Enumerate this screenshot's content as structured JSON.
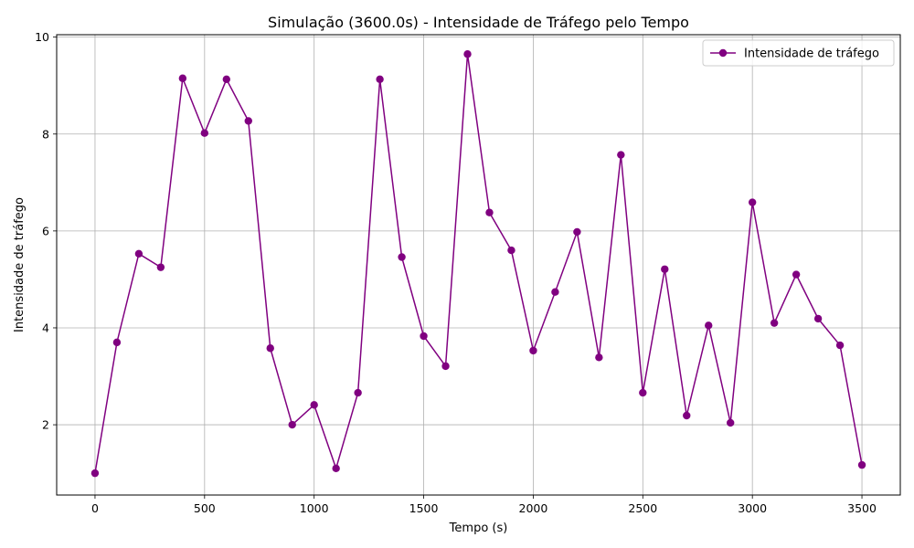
{
  "chart_data": {
    "type": "line",
    "title": "Simulação (3600.0s) - Intensidade de Tráfego pelo Tempo",
    "xlabel": "Tempo (s)",
    "ylabel": "Intensidade de tráfego",
    "xlim": [
      -175,
      3675
    ],
    "ylim": [
      0.55,
      10.05
    ],
    "xticks": [
      0,
      500,
      1000,
      1500,
      2000,
      2500,
      3000,
      3500
    ],
    "yticks": [
      2,
      4,
      6,
      8,
      10
    ],
    "grid": true,
    "legend_position": "top-right",
    "series": [
      {
        "name": "Intensidade de tráfego",
        "color": "#800080",
        "marker": "circle",
        "x": [
          0,
          100,
          200,
          300,
          400,
          500,
          600,
          700,
          800,
          900,
          1000,
          1100,
          1200,
          1300,
          1400,
          1500,
          1600,
          1700,
          1800,
          1900,
          2000,
          2100,
          2200,
          2300,
          2400,
          2500,
          2600,
          2700,
          2800,
          2900,
          3000,
          3100,
          3200,
          3300,
          3400,
          3500
        ],
        "y": [
          1.0,
          3.7,
          5.53,
          5.25,
          9.15,
          8.02,
          9.13,
          8.27,
          3.58,
          2.0,
          2.41,
          1.1,
          2.66,
          9.13,
          5.46,
          3.83,
          3.21,
          9.65,
          6.38,
          5.6,
          3.53,
          4.74,
          5.98,
          3.39,
          7.57,
          2.66,
          5.21,
          2.19,
          4.05,
          2.04,
          6.59,
          4.1,
          5.1,
          4.19,
          3.64,
          1.17
        ]
      }
    ]
  }
}
